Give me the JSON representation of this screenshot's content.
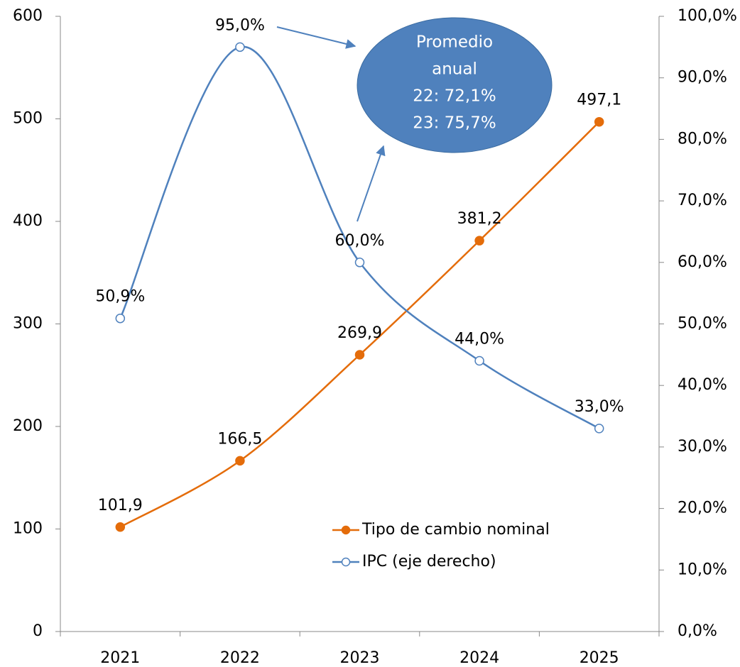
{
  "chart_data": {
    "type": "line",
    "categories": [
      "2021",
      "2022",
      "2023",
      "2024",
      "2025"
    ],
    "series": [
      {
        "name": "Tipo de cambio nominal",
        "color": "#e46c0a",
        "marker": "filled",
        "axis": "y",
        "values": [
          101.9,
          166.5,
          269.9,
          381.2,
          497.1
        ],
        "value_labels": [
          "101,9",
          "166,5",
          "269,9",
          "381,2",
          "497,1"
        ]
      },
      {
        "name": "IPC (eje derecho)",
        "color": "#4f81bd",
        "marker": "hollow",
        "axis": "y2",
        "values": [
          50.9,
          95.0,
          60.0,
          44.0,
          33.0
        ],
        "value_labels": [
          "50,9%",
          "95,0%",
          "60,0%",
          "44,0%",
          "33,0%"
        ]
      }
    ],
    "ylim": [
      0,
      600
    ],
    "yticks": [
      0,
      100,
      200,
      300,
      400,
      500,
      600
    ],
    "y2lim": [
      0,
      100
    ],
    "y2ticks": [
      {
        "value": 0,
        "label": "0,0%"
      },
      {
        "value": 10,
        "label": "10,0%"
      },
      {
        "value": 20,
        "label": "20,0%"
      },
      {
        "value": 30,
        "label": "30,0%"
      },
      {
        "value": 40,
        "label": "40,0%"
      },
      {
        "value": 50,
        "label": "50,0%"
      },
      {
        "value": 60,
        "label": "60,0%"
      },
      {
        "value": 70,
        "label": "70,0%"
      },
      {
        "value": 80,
        "label": "80,0%"
      },
      {
        "value": 90,
        "label": "90,0%"
      },
      {
        "value": 100,
        "label": "100,0%"
      }
    ],
    "grid": false,
    "smooth": true,
    "legend": "lower center",
    "annotation": [
      "Promedio",
      "anual",
      "22: 72,1%",
      "23: 75,7%"
    ]
  }
}
